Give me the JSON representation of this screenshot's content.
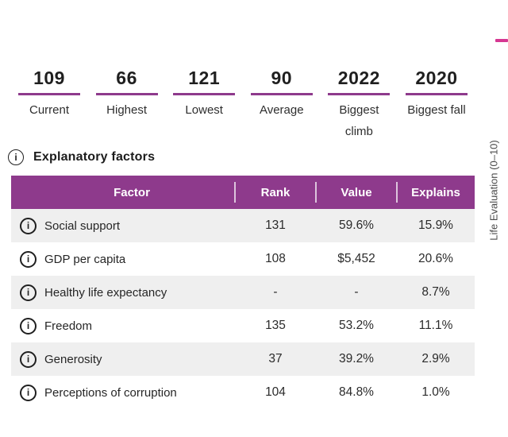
{
  "stats": [
    {
      "value": "109",
      "label": "Current"
    },
    {
      "value": "66",
      "label": "Highest"
    },
    {
      "value": "121",
      "label": "Lowest"
    },
    {
      "value": "90",
      "label": "Average"
    },
    {
      "value": "2022",
      "label": "Biggest climb"
    },
    {
      "value": "2020",
      "label": "Biggest fall"
    }
  ],
  "explanatory": {
    "heading": "Explanatory factors",
    "table": {
      "columns": [
        "Factor",
        "Rank",
        "Value",
        "Explains"
      ],
      "rows": [
        {
          "factor": "Social support",
          "rank": "131",
          "value": "59.6%",
          "explains": "15.9%"
        },
        {
          "factor": "GDP per capita",
          "rank": "108",
          "value": "$5,452",
          "explains": "20.6%"
        },
        {
          "factor": "Healthy life expectancy",
          "rank": "-",
          "value": "-",
          "explains": "8.7%"
        },
        {
          "factor": "Freedom",
          "rank": "135",
          "value": "53.2%",
          "explains": "11.1%"
        },
        {
          "factor": "Generosity",
          "rank": "37",
          "value": "39.2%",
          "explains": "2.9%"
        },
        {
          "factor": "Perceptions of corruption",
          "rank": "104",
          "value": "84.8%",
          "explains": "1.0%"
        }
      ]
    }
  },
  "axis": {
    "label": "Life Evaluation (0–10)"
  },
  "icons": {
    "info_glyph": "i"
  },
  "colors": {
    "accent_purple": "#8E3A8C",
    "accent_pink": "#D63792",
    "row_alt": "#EFEFEF"
  }
}
